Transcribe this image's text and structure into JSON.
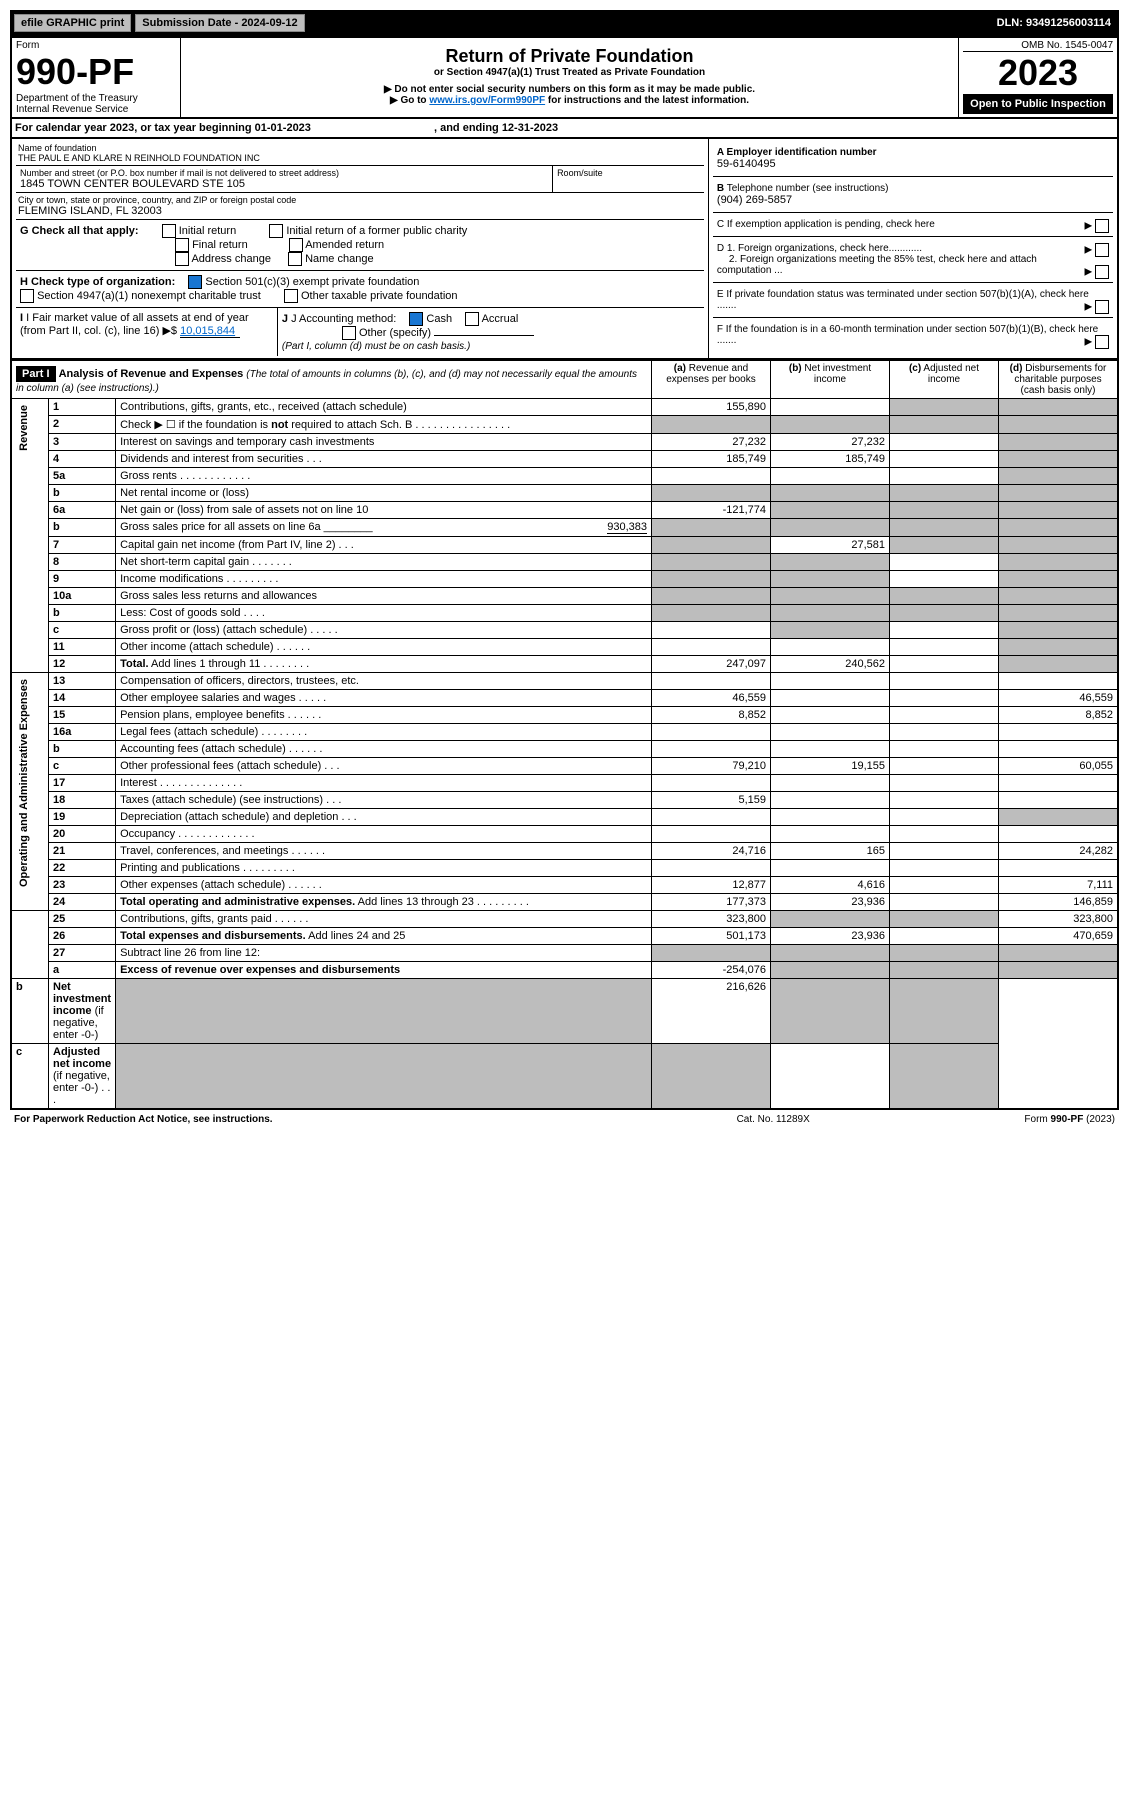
{
  "top": {
    "efile": "efile GRAPHIC print",
    "submission": "Submission Date - 2024-09-12",
    "dln": "DLN: 93491256003114"
  },
  "header": {
    "form_label": "Form",
    "form_number": "990-PF",
    "dept": "Department of the Treasury",
    "irs": "Internal Revenue Service",
    "title": "Return of Private Foundation",
    "subtitle": "or Section 4947(a)(1) Trust Treated as Private Foundation",
    "note1": "▶ Do not enter social security numbers on this form as it may be made public.",
    "note2_prefix": "▶ Go to ",
    "note2_link": "www.irs.gov/Form990PF",
    "note2_suffix": " for instructions and the latest information.",
    "omb": "OMB No. 1545-0047",
    "year": "2023",
    "open": "Open to Public Inspection"
  },
  "tax_year": {
    "text": "For calendar year 2023, or tax year beginning 01-01-2023",
    "ending": ", and ending 12-31-2023"
  },
  "entity": {
    "name_label": "Name of foundation",
    "name": "THE PAUL E AND KLARE N REINHOLD FOUNDATION INC",
    "addr_label": "Number and street (or P.O. box number if mail is not delivered to street address)",
    "addr": "1845 TOWN CENTER BOULEVARD STE 105",
    "room_label": "Room/suite",
    "city_label": "City or town, state or province, country, and ZIP or foreign postal code",
    "city": "FLEMING ISLAND, FL  32003",
    "ein_label": "A Employer identification number",
    "ein": "59-6140495",
    "phone_label": "B Telephone number (see instructions)",
    "phone": "(904) 269-5857",
    "c_label": "C If exemption application is pending, check here"
  },
  "boxes": {
    "g_label": "G Check all that apply:",
    "g_initial": "Initial return",
    "g_final": "Final return",
    "g_address": "Address change",
    "g_initial_former": "Initial return of a former public charity",
    "g_amended": "Amended return",
    "g_name": "Name change",
    "h_label": "H Check type of organization:",
    "h_501c3": "Section 501(c)(3) exempt private foundation",
    "h_4947": "Section 4947(a)(1) nonexempt charitable trust",
    "h_other": "Other taxable private foundation",
    "i_label": "I Fair market value of all assets at end of year (from Part II, col. (c), line 16)",
    "i_arrow": "▶$",
    "i_value": "10,015,844",
    "j_label": "J Accounting method:",
    "j_cash": "Cash",
    "j_accrual": "Accrual",
    "j_other": "Other (specify)",
    "j_note": "(Part I, column (d) must be on cash basis.)",
    "d1": "D 1. Foreign organizations, check here............",
    "d2": "2. Foreign organizations meeting the 85% test, check here and attach computation ...",
    "e_label": "E  If private foundation status was terminated under section 507(b)(1)(A), check here .......",
    "f_label": "F  If the foundation is in a 60-month termination under section 507(b)(1)(B), check here .......",
    "arrow": "▶"
  },
  "part1": {
    "label": "Part I",
    "title": "Analysis of Revenue and Expenses",
    "subtitle": "(The total of amounts in columns (b), (c), and (d) may not necessarily equal the amounts in column (a) (see instructions).)",
    "col_a": "(a)",
    "col_a_sub": "Revenue and expenses per books",
    "col_b": "(b)",
    "col_b_sub": "Net investment income",
    "col_c": "(c)",
    "col_c_sub": "Adjusted net income",
    "col_d": "(d)",
    "col_d_sub": "Disbursements for charitable purposes (cash basis only)"
  },
  "sections": {
    "revenue": "Revenue",
    "expenses": "Operating and Administrative Expenses"
  },
  "rows": [
    {
      "n": "1",
      "label": "Contributions, gifts, grants, etc., received (attach schedule)",
      "a": "155,890",
      "b": "",
      "c": "g",
      "d": "g"
    },
    {
      "n": "2",
      "label": "Check ▶ ☐ if the foundation is <b>not</b> required to attach Sch. B    .   .   .   .   .   .   .   .   .   .   .   .   .   .   .   .",
      "a": "g",
      "b": "g",
      "c": "g",
      "d": "g"
    },
    {
      "n": "3",
      "label": "Interest on savings and temporary cash investments",
      "a": "27,232",
      "b": "27,232",
      "c": "",
      "d": "g"
    },
    {
      "n": "4",
      "label": "Dividends and interest from securities    .   .   .",
      "a": "185,749",
      "b": "185,749",
      "c": "",
      "d": "g"
    },
    {
      "n": "5a",
      "label": "Gross rents    .   .   .   .   .   .   .   .   .   .   .   .",
      "a": "",
      "b": "",
      "c": "",
      "d": "g"
    },
    {
      "n": "b",
      "label": "Net rental income or (loss)",
      "a": "g",
      "b": "g",
      "c": "g",
      "d": "g"
    },
    {
      "n": "6a",
      "label": "Net gain or (loss) from sale of assets not on line 10",
      "a": "-121,774",
      "b": "g",
      "c": "g",
      "d": "g"
    },
    {
      "n": "b",
      "label": "Gross sales price for all assets on line 6a ________",
      "a": "g",
      "b": "g",
      "c": "g",
      "d": "g",
      "inline": "930,383"
    },
    {
      "n": "7",
      "label": "Capital gain net income (from Part IV, line 2)   .   .   .",
      "a": "g",
      "b": "27,581",
      "c": "g",
      "d": "g"
    },
    {
      "n": "8",
      "label": "Net short-term capital gain   .   .   .   .   .   .   .",
      "a": "g",
      "b": "g",
      "c": "",
      "d": "g"
    },
    {
      "n": "9",
      "label": "Income modifications  .   .   .   .   .   .   .   .   .",
      "a": "g",
      "b": "g",
      "c": "",
      "d": "g"
    },
    {
      "n": "10a",
      "label": "Gross sales less returns and allowances",
      "a": "g",
      "b": "g",
      "c": "g",
      "d": "g"
    },
    {
      "n": "b",
      "label": "Less: Cost of goods sold    .   .   .   .",
      "a": "g",
      "b": "g",
      "c": "g",
      "d": "g"
    },
    {
      "n": "c",
      "label": "Gross profit or (loss) (attach schedule)    .   .   .   .   .",
      "a": "",
      "b": "g",
      "c": "",
      "d": "g"
    },
    {
      "n": "11",
      "label": "Other income (attach schedule)    .   .   .   .   .   .",
      "a": "",
      "b": "",
      "c": "",
      "d": "g"
    },
    {
      "n": "12",
      "label": "<b>Total.</b> Add lines 1 through 11   .   .   .   .   .   .   .   .",
      "a": "247,097",
      "b": "240,562",
      "c": "",
      "d": "g"
    },
    {
      "n": "13",
      "label": "Compensation of officers, directors, trustees, etc.",
      "a": "",
      "b": "",
      "c": "",
      "d": ""
    },
    {
      "n": "14",
      "label": "Other employee salaries and wages    .   .   .   .   .",
      "a": "46,559",
      "b": "",
      "c": "",
      "d": "46,559"
    },
    {
      "n": "15",
      "label": "Pension plans, employee benefits  .   .   .   .   .   .",
      "a": "8,852",
      "b": "",
      "c": "",
      "d": "8,852"
    },
    {
      "n": "16a",
      "label": "Legal fees (attach schedule)  .   .   .   .   .   .   .   .",
      "a": "",
      "b": "",
      "c": "",
      "d": ""
    },
    {
      "n": "b",
      "label": "Accounting fees (attach schedule)  .   .   .   .   .   .",
      "a": "",
      "b": "",
      "c": "",
      "d": ""
    },
    {
      "n": "c",
      "label": "Other professional fees (attach schedule)    .   .   .",
      "a": "79,210",
      "b": "19,155",
      "c": "",
      "d": "60,055"
    },
    {
      "n": "17",
      "label": "Interest   .   .   .   .   .   .   .   .   .   .   .   .   .   .",
      "a": "",
      "b": "",
      "c": "",
      "d": ""
    },
    {
      "n": "18",
      "label": "Taxes (attach schedule) (see instructions)    .   .   .",
      "a": "5,159",
      "b": "",
      "c": "",
      "d": ""
    },
    {
      "n": "19",
      "label": "Depreciation (attach schedule) and depletion    .   .   .",
      "a": "",
      "b": "",
      "c": "",
      "d": "g"
    },
    {
      "n": "20",
      "label": "Occupancy  .   .   .   .   .   .   .   .   .   .   .   .   .",
      "a": "",
      "b": "",
      "c": "",
      "d": ""
    },
    {
      "n": "21",
      "label": "Travel, conferences, and meetings  .   .   .   .   .   .",
      "a": "24,716",
      "b": "165",
      "c": "",
      "d": "24,282"
    },
    {
      "n": "22",
      "label": "Printing and publications  .   .   .   .   .   .   .   .   .",
      "a": "",
      "b": "",
      "c": "",
      "d": ""
    },
    {
      "n": "23",
      "label": "Other expenses (attach schedule)  .   .   .   .   .   .",
      "a": "12,877",
      "b": "4,616",
      "c": "",
      "d": "7,111"
    },
    {
      "n": "24",
      "label": "<b>Total operating and administrative expenses.</b> Add lines 13 through 23   .   .   .   .   .   .   .   .   .",
      "a": "177,373",
      "b": "23,936",
      "c": "",
      "d": "146,859"
    },
    {
      "n": "25",
      "label": "Contributions, gifts, grants paid    .   .   .   .   .   .",
      "a": "323,800",
      "b": "g",
      "c": "g",
      "d": "323,800"
    },
    {
      "n": "26",
      "label": "<b>Total expenses and disbursements.</b> Add lines 24 and 25",
      "a": "501,173",
      "b": "23,936",
      "c": "",
      "d": "470,659"
    },
    {
      "n": "27",
      "label": "Subtract line 26 from line 12:",
      "a": "g",
      "b": "g",
      "c": "g",
      "d": "g"
    },
    {
      "n": "a",
      "label": "<b>Excess of revenue over expenses and disbursements</b>",
      "a": "-254,076",
      "b": "g",
      "c": "g",
      "d": "g"
    },
    {
      "n": "b",
      "label": "<b>Net investment income</b> (if negative, enter -0-)",
      "a": "g",
      "b": "216,626",
      "c": "g",
      "d": "g"
    },
    {
      "n": "c",
      "label": "<b>Adjusted net income</b> (if negative, enter -0-)   .   .   .",
      "a": "g",
      "b": "g",
      "c": "",
      "d": "g"
    }
  ],
  "footer": {
    "left": "For Paperwork Reduction Act Notice, see instructions.",
    "mid": "Cat. No. 11289X",
    "right": "Form <b>990-PF</b> (2023)"
  }
}
